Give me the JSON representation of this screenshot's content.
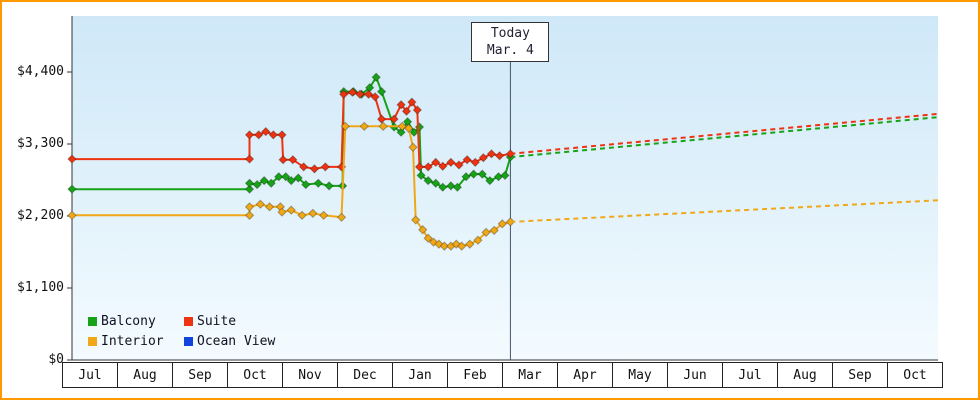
{
  "colors": {
    "frame_border": "#ff9900",
    "axis": "#333333",
    "today_line": "#445566",
    "plot_bg_top": "#cfe8f8",
    "plot_bg_bottom": "#f4fbff",
    "text": "#111111"
  },
  "chart_data": {
    "type": "line",
    "y_axis": {
      "max": 4400,
      "ticks": [
        0,
        1100,
        2200,
        3300,
        4400
      ],
      "labels": [
        "$0",
        "$1,100",
        "$2,200",
        "$3,300",
        "$4,400"
      ]
    },
    "x_axis": {
      "months": [
        "Jul",
        "Aug",
        "Sep",
        "Oct",
        "Nov",
        "Dec",
        "Jan",
        "Feb",
        "Mar",
        "Apr",
        "May",
        "Jun",
        "Jul",
        "Aug",
        "Sep",
        "Oct"
      ]
    },
    "today": {
      "label": "Today",
      "date": "Mar. 4",
      "month_index": 8.1
    },
    "legend": [
      {
        "label": "Balcony",
        "color": "#17a317"
      },
      {
        "label": "Suite",
        "color": "#ee3311"
      },
      {
        "label": "Interior",
        "color": "#f0a818"
      },
      {
        "label": "Ocean View",
        "color": "#1144dd"
      }
    ],
    "series": [
      {
        "name": "Balcony",
        "color": "#17a317",
        "history": [
          [
            0,
            2610
          ],
          [
            3.28,
            2610
          ],
          [
            3.28,
            2700
          ],
          [
            3.42,
            2680
          ],
          [
            3.55,
            2740
          ],
          [
            3.68,
            2700
          ],
          [
            3.82,
            2800
          ],
          [
            3.95,
            2800
          ],
          [
            4.05,
            2740
          ],
          [
            4.18,
            2780
          ],
          [
            4.32,
            2680
          ],
          [
            4.55,
            2700
          ],
          [
            4.75,
            2660
          ],
          [
            5.0,
            2660
          ],
          [
            5.02,
            4100
          ],
          [
            5.2,
            4100
          ],
          [
            5.35,
            4060
          ],
          [
            5.5,
            4160
          ],
          [
            5.62,
            4320
          ],
          [
            5.72,
            4100
          ],
          [
            5.95,
            3560
          ],
          [
            6.08,
            3480
          ],
          [
            6.2,
            3640
          ],
          [
            6.32,
            3480
          ],
          [
            6.42,
            3560
          ],
          [
            6.45,
            2820
          ],
          [
            6.58,
            2740
          ],
          [
            6.72,
            2700
          ],
          [
            6.85,
            2640
          ],
          [
            7.0,
            2660
          ],
          [
            7.12,
            2640
          ],
          [
            7.28,
            2800
          ],
          [
            7.42,
            2840
          ],
          [
            7.58,
            2840
          ],
          [
            7.72,
            2740
          ],
          [
            7.88,
            2800
          ],
          [
            8.0,
            2820
          ],
          [
            8.1,
            3100
          ]
        ],
        "forecast": [
          [
            8.1,
            3100
          ],
          [
            16,
            3710
          ]
        ]
      },
      {
        "name": "Suite",
        "color": "#ee3311",
        "history": [
          [
            0,
            3070
          ],
          [
            3.28,
            3070
          ],
          [
            3.28,
            3440
          ],
          [
            3.45,
            3440
          ],
          [
            3.58,
            3490
          ],
          [
            3.72,
            3440
          ],
          [
            3.88,
            3440
          ],
          [
            3.9,
            3060
          ],
          [
            4.08,
            3060
          ],
          [
            4.28,
            2950
          ],
          [
            4.48,
            2920
          ],
          [
            4.68,
            2950
          ],
          [
            4.98,
            2950
          ],
          [
            5.02,
            4060
          ],
          [
            5.18,
            4090
          ],
          [
            5.32,
            4060
          ],
          [
            5.48,
            4060
          ],
          [
            5.6,
            4020
          ],
          [
            5.72,
            3680
          ],
          [
            5.95,
            3680
          ],
          [
            6.08,
            3900
          ],
          [
            6.18,
            3800
          ],
          [
            6.28,
            3940
          ],
          [
            6.38,
            3820
          ],
          [
            6.42,
            2950
          ],
          [
            6.58,
            2950
          ],
          [
            6.72,
            3020
          ],
          [
            6.85,
            2960
          ],
          [
            7.0,
            3020
          ],
          [
            7.15,
            2980
          ],
          [
            7.3,
            3060
          ],
          [
            7.45,
            3020
          ],
          [
            7.6,
            3090
          ],
          [
            7.75,
            3150
          ],
          [
            7.9,
            3120
          ],
          [
            8.1,
            3150
          ]
        ],
        "forecast": [
          [
            8.1,
            3150
          ],
          [
            16,
            3760
          ]
        ]
      },
      {
        "name": "Interior",
        "color": "#f0a818",
        "history": [
          [
            0,
            2210
          ],
          [
            3.28,
            2210
          ],
          [
            3.28,
            2340
          ],
          [
            3.48,
            2380
          ],
          [
            3.65,
            2340
          ],
          [
            3.85,
            2340
          ],
          [
            3.88,
            2260
          ],
          [
            4.05,
            2290
          ],
          [
            4.25,
            2210
          ],
          [
            4.45,
            2240
          ],
          [
            4.65,
            2210
          ],
          [
            4.98,
            2180
          ],
          [
            5.05,
            3570
          ],
          [
            5.4,
            3570
          ],
          [
            5.75,
            3570
          ],
          [
            6.1,
            3570
          ],
          [
            6.22,
            3540
          ],
          [
            6.3,
            3250
          ],
          [
            6.35,
            2140
          ],
          [
            6.48,
            1990
          ],
          [
            6.58,
            1860
          ],
          [
            6.68,
            1800
          ],
          [
            6.78,
            1770
          ],
          [
            6.88,
            1740
          ],
          [
            7.0,
            1740
          ],
          [
            7.1,
            1770
          ],
          [
            7.2,
            1740
          ],
          [
            7.35,
            1770
          ],
          [
            7.5,
            1830
          ],
          [
            7.65,
            1950
          ],
          [
            7.8,
            1980
          ],
          [
            7.95,
            2080
          ],
          [
            8.1,
            2110
          ]
        ],
        "forecast": [
          [
            8.1,
            2110
          ],
          [
            16,
            2440
          ]
        ]
      },
      {
        "name": "Ocean View",
        "color": "#1144dd",
        "history": [],
        "forecast": []
      }
    ]
  }
}
